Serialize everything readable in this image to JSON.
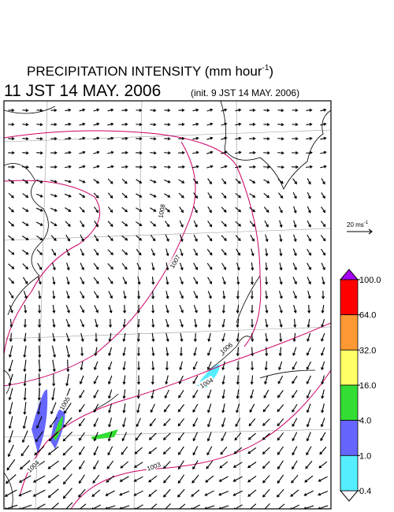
{
  "header": {
    "title": "PRECIPITATION INTENSITY (mm hour",
    "title_sup": "-1",
    "title_end": ")",
    "valid_time": "11 JST 14 MAY. 2006",
    "init_time": "(init. 9 JST 14 MAY. 2006)"
  },
  "vector_reference": {
    "label": "20 ms",
    "label_sup": "-1"
  },
  "isobars": [
    "1008",
    "1007",
    "1006",
    "1005",
    "1004",
    "1004",
    "1003"
  ],
  "colorbar": {
    "levels": [
      {
        "value": 100,
        "label": "100.0"
      },
      {
        "value": 64,
        "label": "64.0"
      },
      {
        "value": 32,
        "label": "32.0"
      },
      {
        "value": 16,
        "label": "16.0"
      },
      {
        "value": 4,
        "label": "4.0"
      },
      {
        "value": 1,
        "label": "1.0"
      },
      {
        "value": 0.4,
        "label": "0.4"
      }
    ],
    "colors": [
      "#ff0000",
      "#ff9933",
      "#ffff66",
      "#33dd33",
      "#6666ff",
      "#55eeff"
    ],
    "over_color": "#aa00ff",
    "under_color": "#ffffff"
  }
}
